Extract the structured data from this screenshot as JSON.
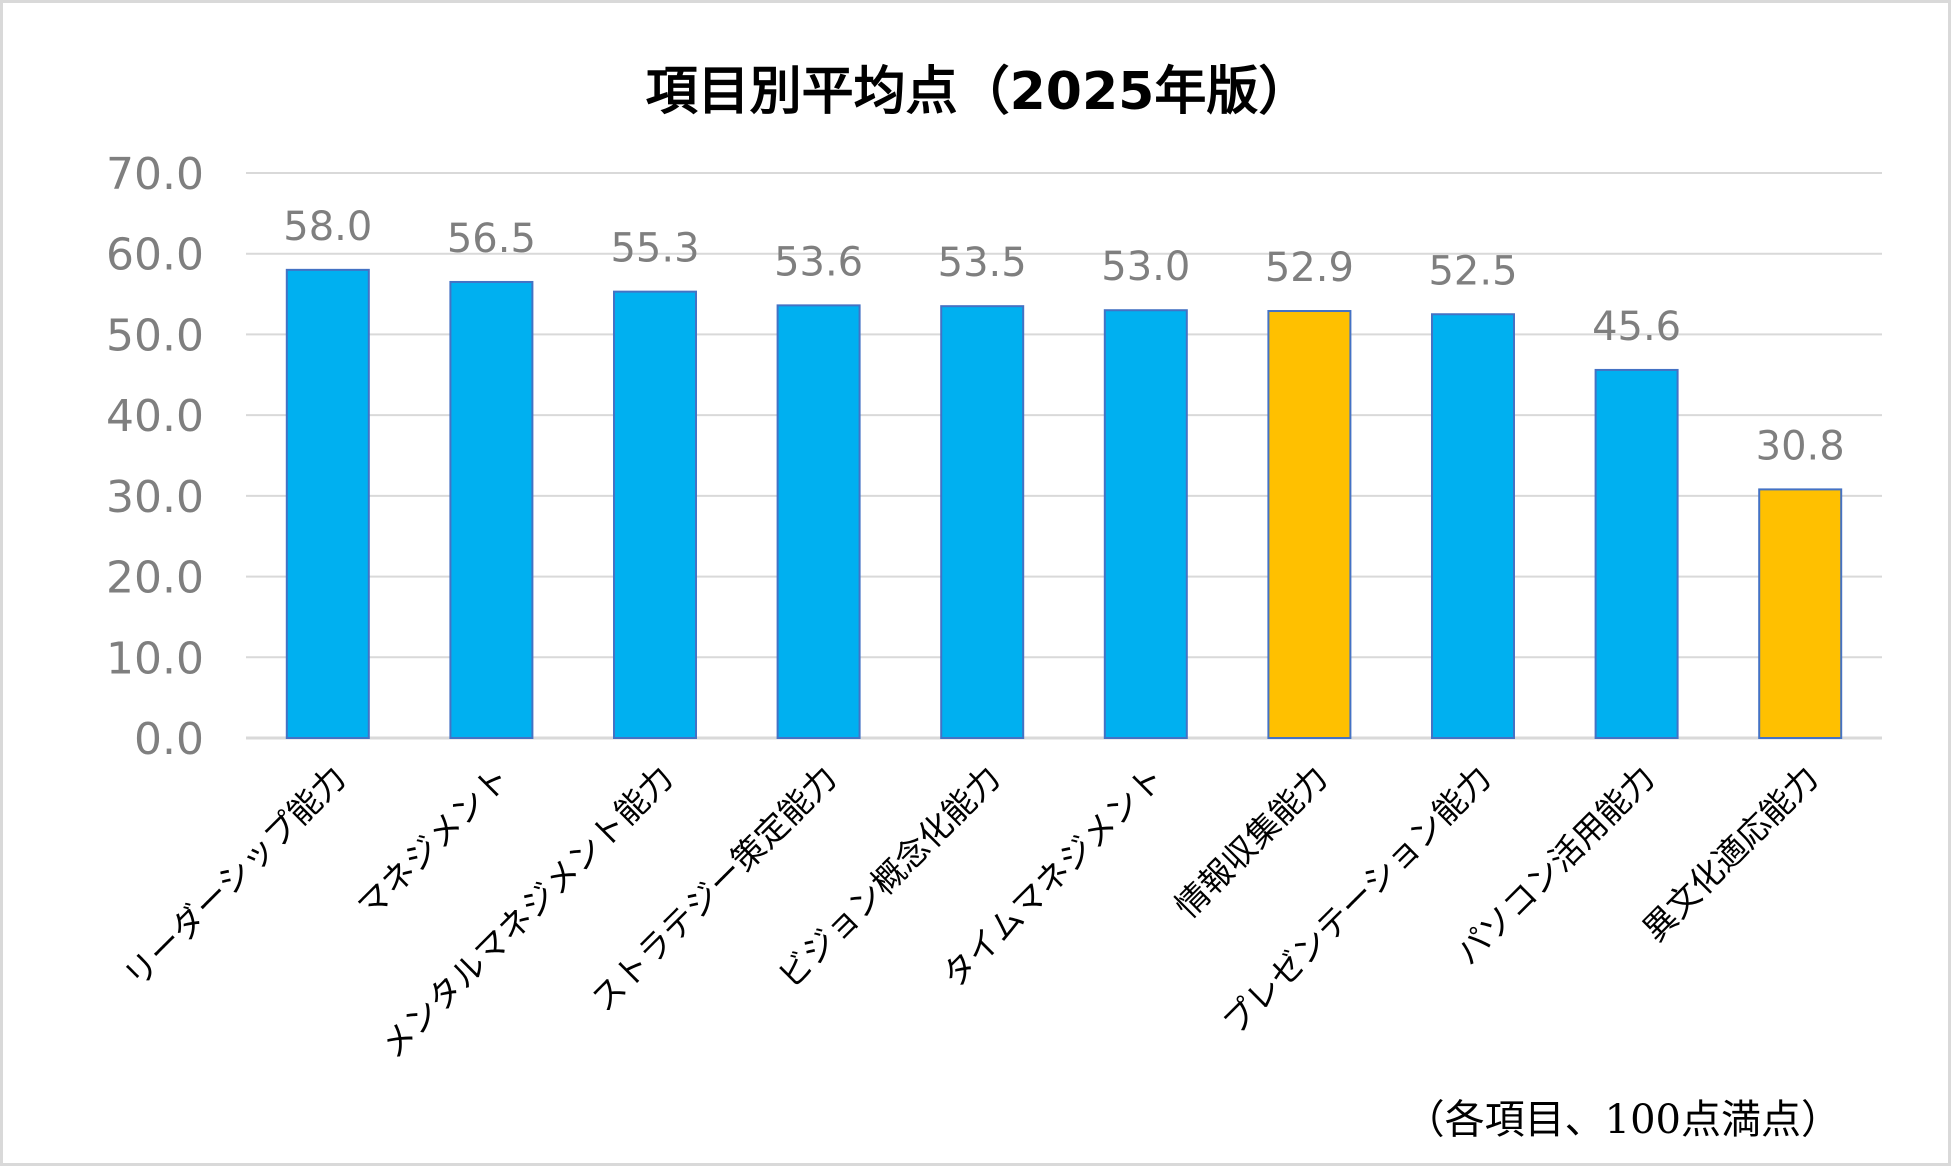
{
  "chart_data": {
    "type": "bar",
    "title": "項目別平均点（2025年版）",
    "categories": [
      "リーダーシップ能力",
      "マネジメント",
      "メンタルマネジメント能力",
      "ストラテジー策定能力",
      "ビジョン概念化能力",
      "タイムマネジメント",
      "情報収集能力",
      "プレゼンテーション能力",
      "パソコン活用能力",
      "異文化適応能力"
    ],
    "values": [
      58.0,
      56.5,
      55.3,
      53.6,
      53.5,
      53.0,
      52.9,
      52.5,
      45.6,
      30.8
    ],
    "data_labels": [
      "58.0",
      "56.5",
      "55.3",
      "53.6",
      "53.5",
      "53.0",
      "52.9",
      "52.5",
      "45.6",
      "30.8"
    ],
    "highlight": [
      false,
      false,
      false,
      false,
      false,
      false,
      true,
      false,
      false,
      true
    ],
    "colors": {
      "default": "#00b0f0",
      "highlight": "#ffc000",
      "bar_border": "#4472c4",
      "grid": "#d9d9d9"
    },
    "ylim": [
      0,
      70
    ],
    "yticks": [
      0,
      10,
      20,
      30,
      40,
      50,
      60,
      70
    ],
    "ytick_labels": [
      "0.0",
      "10.0",
      "20.0",
      "30.0",
      "40.0",
      "50.0",
      "60.0",
      "70.0"
    ],
    "grid": true,
    "xlabel": "",
    "ylabel": "",
    "note": "（各項目、100点満点）"
  }
}
